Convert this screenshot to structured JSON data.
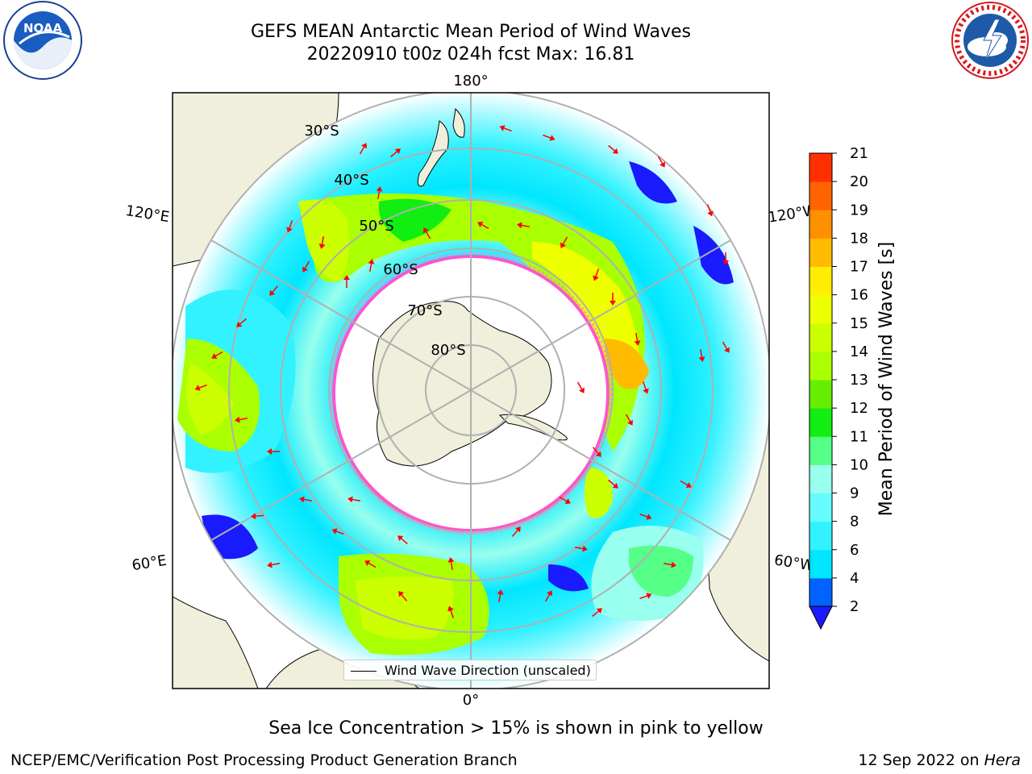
{
  "header": {
    "title_line1": "GEFS MEAN Antarctic Mean Period of Wind Waves",
    "title_line2": "20220910 t00z 024h fcst   Max: 16.81"
  },
  "logos": {
    "left": {
      "name": "NOAA",
      "text": "NOAA",
      "ring_text": "NATIONAL OCEANIC AND ATMOSPHERIC ADMINISTRATION · U.S. DEPARTMENT OF COMMERCE"
    },
    "right": {
      "name": "National Weather Service",
      "ring_text": "NATIONAL WEATHER SERVICE"
    }
  },
  "map": {
    "projection": "South Polar Stereographic",
    "longitude_labels": {
      "top": "180°",
      "bottom": "0°",
      "upper_left": "120°E",
      "upper_right": "120°W",
      "lower_left": "60°E",
      "lower_right": "60°W"
    },
    "latitude_labels": [
      "30°S",
      "40°S",
      "50°S",
      "60°S",
      "70°S",
      "80°S"
    ],
    "legend_label": "Wind Wave Direction (unscaled)"
  },
  "colorbar": {
    "label": "Mean Period of Wind Waves [s]",
    "ticks": [
      "2",
      "4",
      "6",
      "8",
      "9",
      "10",
      "11",
      "12",
      "13",
      "14",
      "15",
      "16",
      "17",
      "18",
      "19",
      "20",
      "21"
    ],
    "colors": [
      "#0062ff",
      "#00e6ff",
      "#33f2ff",
      "#66fcff",
      "#99ffee",
      "#55ff88",
      "#11ee11",
      "#66ee00",
      "#aaff00",
      "#ccff00",
      "#eeff00",
      "#ffee00",
      "#ffbb00",
      "#ff9000",
      "#ff6400",
      "#ff3000",
      "#ff0000"
    ],
    "under_color": "#1a1aff"
  },
  "caption": "Sea Ice Concentration > 15% is shown in pink to yellow",
  "footer": {
    "left": "NCEP/EMC/Verification Post Processing Product Generation Branch",
    "right_date": "12 Sep 2022 on ",
    "right_machine": "Hera"
  }
}
